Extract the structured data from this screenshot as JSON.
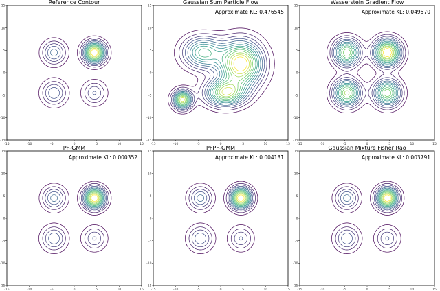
{
  "chart_data": [
    {
      "type": "contour",
      "title": "Reference Contour",
      "annotation": "",
      "xlim": [
        -15,
        15
      ],
      "ylim": [
        -15,
        15
      ],
      "xticks": [
        "-15",
        "-10",
        "-5",
        "0",
        "5",
        "10",
        "15"
      ],
      "yticks": [
        "15",
        "10",
        "5",
        "0",
        "-5",
        "-10",
        "-15"
      ],
      "components": [
        {
          "mean": [
            4.5,
            4.5
          ],
          "sigma": [
            1.6,
            1.6
          ],
          "weight": 0.45
        },
        {
          "mean": [
            -4.5,
            4.5
          ],
          "sigma": [
            1.8,
            1.8
          ],
          "weight": 0.2
        },
        {
          "mean": [
            -4.5,
            -4.5
          ],
          "sigma": [
            1.9,
            1.9
          ],
          "weight": 0.2
        },
        {
          "mean": [
            4.5,
            -4.5
          ],
          "sigma": [
            1.8,
            1.8
          ],
          "weight": 0.15
        }
      ]
    },
    {
      "type": "contour",
      "title": "Gaussian Sum Particle Flow",
      "annotation": "Approximate KL: 0.476545",
      "xlim": [
        -15,
        15
      ],
      "ylim": [
        -15,
        15
      ],
      "xticks": [
        "-15",
        "-10",
        "-5",
        "0",
        "5",
        "10",
        "15"
      ],
      "yticks": [
        "15",
        "10",
        "5",
        "0",
        "-5",
        "-10",
        "-15"
      ],
      "components": [
        {
          "mean": [
            4.5,
            2.0
          ],
          "sigma": [
            3.2,
            3.4
          ],
          "weight": 0.5
        },
        {
          "mean": [
            -4.0,
            4.5
          ],
          "sigma": [
            3.0,
            2.4
          ],
          "weight": 0.2
        },
        {
          "mean": [
            -8.5,
            -6.0
          ],
          "sigma": [
            1.4,
            1.4
          ],
          "weight": 0.08
        },
        {
          "mean": [
            1.0,
            -4.5
          ],
          "sigma": [
            3.0,
            2.0
          ],
          "weight": 0.22
        }
      ]
    },
    {
      "type": "contour",
      "title": "Wasserstein Gradient Flow",
      "annotation": "Approximate KL: 0.049570",
      "xlim": [
        -15,
        15
      ],
      "ylim": [
        -15,
        15
      ],
      "xticks": [
        "-15",
        "-10",
        "-5",
        "0",
        "5",
        "10",
        "15"
      ],
      "yticks": [
        "15",
        "10",
        "5",
        "0",
        "-5",
        "-10",
        "-15"
      ],
      "components": [
        {
          "mean": [
            4.5,
            4.5
          ],
          "sigma": [
            2.0,
            2.0
          ],
          "weight": 0.3
        },
        {
          "mean": [
            -4.5,
            4.5
          ],
          "sigma": [
            2.0,
            2.0
          ],
          "weight": 0.23
        },
        {
          "mean": [
            -4.5,
            -4.5
          ],
          "sigma": [
            2.0,
            2.0
          ],
          "weight": 0.24
        },
        {
          "mean": [
            4.5,
            -4.5
          ],
          "sigma": [
            2.0,
            2.0
          ],
          "weight": 0.23
        }
      ]
    },
    {
      "type": "contour",
      "title": "PF-GMM",
      "annotation": "Approximate KL: 0.000352",
      "xlim": [
        -15,
        15
      ],
      "ylim": [
        -15,
        15
      ],
      "xticks": [
        "-15",
        "-10",
        "-5",
        "0",
        "5",
        "10",
        "15"
      ],
      "yticks": [
        "15",
        "10",
        "5",
        "0",
        "-5",
        "-10",
        "-15"
      ],
      "components": [
        {
          "mean": [
            4.5,
            4.5
          ],
          "sigma": [
            1.6,
            1.6
          ],
          "weight": 0.45
        },
        {
          "mean": [
            -4.5,
            4.5
          ],
          "sigma": [
            1.8,
            1.8
          ],
          "weight": 0.2
        },
        {
          "mean": [
            -4.5,
            -4.5
          ],
          "sigma": [
            1.9,
            1.9
          ],
          "weight": 0.2
        },
        {
          "mean": [
            4.5,
            -4.5
          ],
          "sigma": [
            1.8,
            1.8
          ],
          "weight": 0.15
        }
      ]
    },
    {
      "type": "contour",
      "title": "PFPF-GMM",
      "annotation": "Approximate KL: 0.004131",
      "xlim": [
        -15,
        15
      ],
      "ylim": [
        -15,
        15
      ],
      "xticks": [
        "-15",
        "-10",
        "-5",
        "0",
        "5",
        "10",
        "15"
      ],
      "yticks": [
        "15",
        "10",
        "5",
        "0",
        "-5",
        "-10",
        "-15"
      ],
      "components": [
        {
          "mean": [
            4.5,
            4.5
          ],
          "sigma": [
            1.6,
            1.6
          ],
          "weight": 0.45
        },
        {
          "mean": [
            -4.5,
            4.5
          ],
          "sigma": [
            1.8,
            1.8
          ],
          "weight": 0.2
        },
        {
          "mean": [
            -4.5,
            -4.5
          ],
          "sigma": [
            1.9,
            1.9
          ],
          "weight": 0.2
        },
        {
          "mean": [
            4.5,
            -4.5
          ],
          "sigma": [
            1.8,
            1.8
          ],
          "weight": 0.15
        }
      ]
    },
    {
      "type": "contour",
      "title": "Gaussian Mixture Fisher Rao",
      "annotation": "Approximate KL: 0.003791",
      "xlim": [
        -15,
        15
      ],
      "ylim": [
        -15,
        15
      ],
      "xticks": [
        "-15",
        "-10",
        "-5",
        "0",
        "5",
        "10",
        "15"
      ],
      "yticks": [
        "15",
        "10",
        "5",
        "0",
        "-5",
        "-10",
        "-15"
      ],
      "components": [
        {
          "mean": [
            4.5,
            4.5
          ],
          "sigma": [
            1.6,
            1.6
          ],
          "weight": 0.45
        },
        {
          "mean": [
            -4.5,
            4.5
          ],
          "sigma": [
            1.8,
            1.8
          ],
          "weight": 0.2
        },
        {
          "mean": [
            -4.5,
            -4.5
          ],
          "sigma": [
            1.9,
            1.9
          ],
          "weight": 0.2
        },
        {
          "mean": [
            4.5,
            -4.5
          ],
          "sigma": [
            1.8,
            1.8
          ],
          "weight": 0.15
        }
      ]
    }
  ],
  "colormap": [
    "#440154",
    "#3b528b",
    "#21918c",
    "#5ec962",
    "#fde725"
  ],
  "contour_levels": 14
}
